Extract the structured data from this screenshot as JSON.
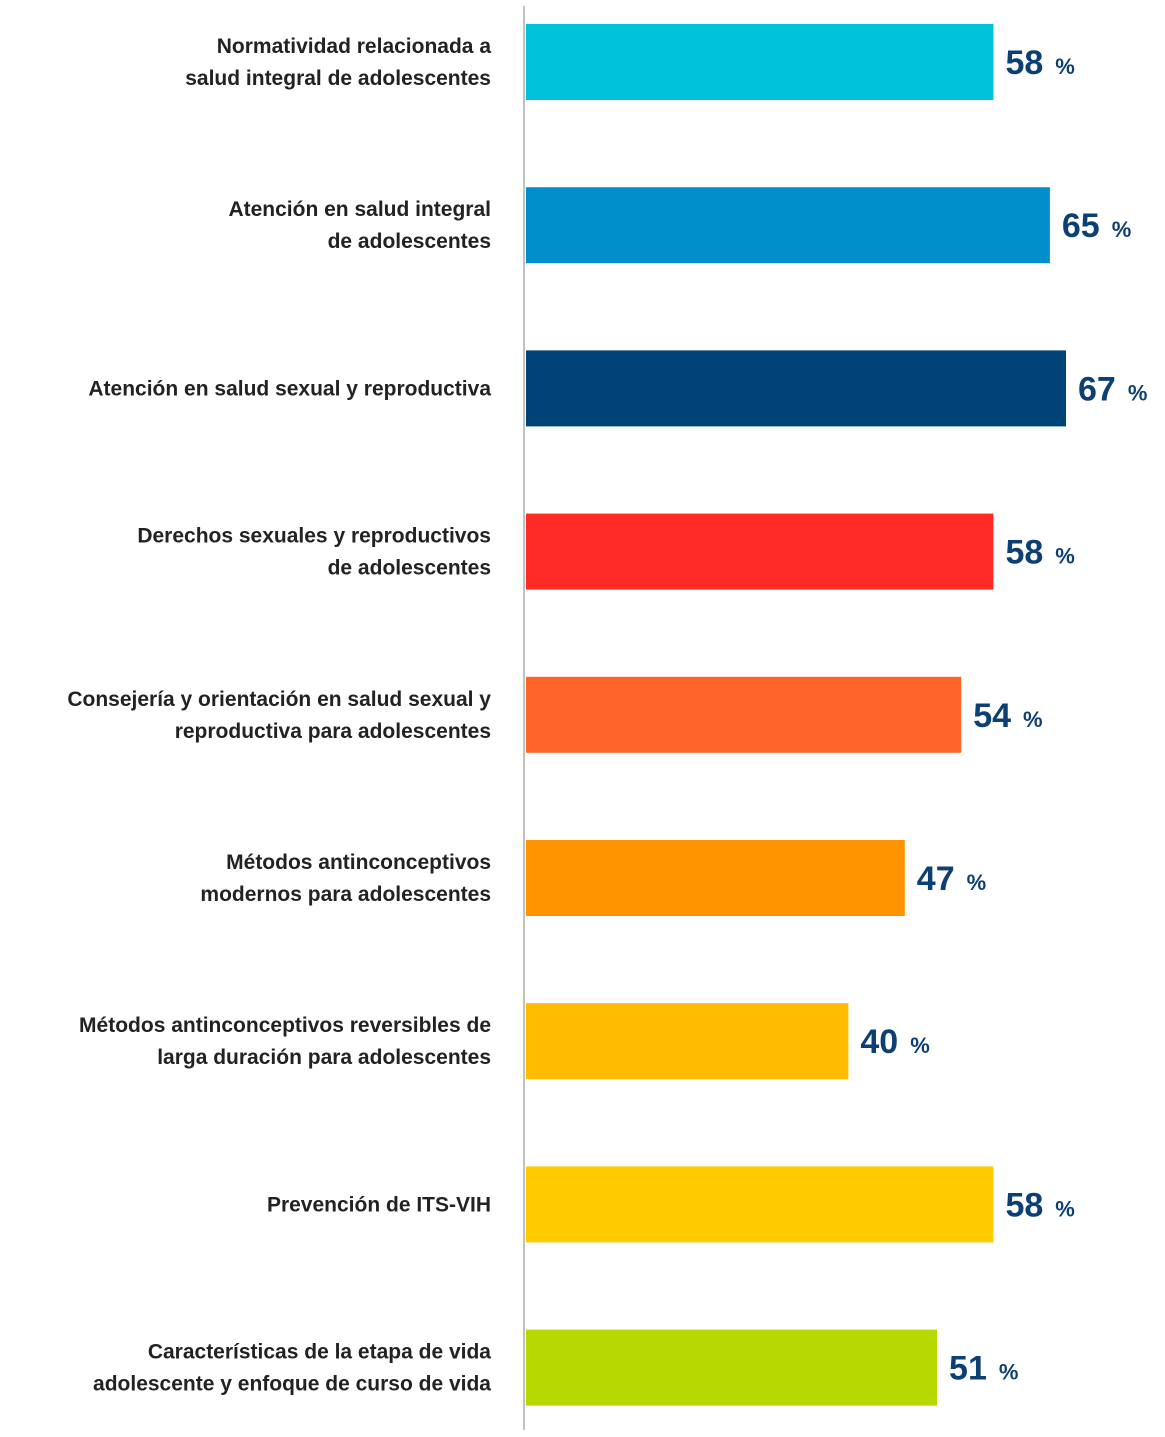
{
  "chart_data": {
    "type": "bar",
    "orientation": "horizontal",
    "categories": [
      [
        "Normatividad relacionada a",
        "salud integral de adolescentes"
      ],
      [
        "Atención en salud integral",
        "de adolescentes"
      ],
      [
        "Atención en salud sexual y reproductiva"
      ],
      [
        "Derechos sexuales y reproductivos",
        "de adolescentes"
      ],
      [
        "Consejería y orientación en salud sexual y",
        "reproductiva para adolescentes"
      ],
      [
        "Métodos antinconceptivos",
        "modernos para adolescentes"
      ],
      [
        "Métodos antinconceptivos reversibles de",
        "larga duración para adolescentes"
      ],
      [
        "Prevención de ITS-VIH"
      ],
      [
        "Características de la etapa de vida",
        "adolescente y enfoque de curso de vida"
      ]
    ],
    "values": [
      58,
      65,
      67,
      58,
      54,
      47,
      40,
      58,
      51
    ],
    "value_unit": "%",
    "colors": [
      "#00c2da",
      "#008fca",
      "#004477",
      "#ff2b27",
      "#ff642b",
      "#ff9400",
      "#ffbb00",
      "#ffcc00",
      "#b7d900"
    ],
    "xlim": [
      0,
      67
    ],
    "grid": false,
    "legend": "none",
    "title": "",
    "xlabel": "",
    "ylabel": ""
  }
}
